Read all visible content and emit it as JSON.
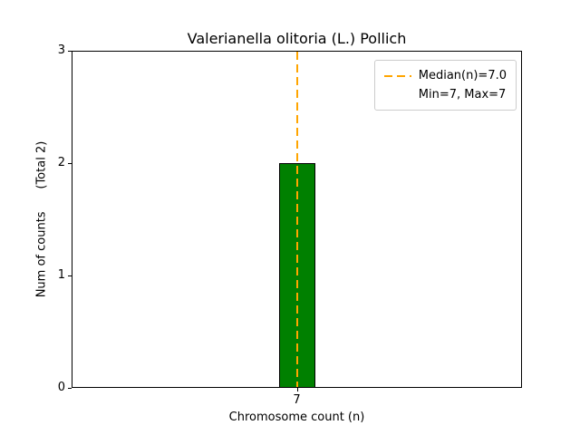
{
  "chart_data": {
    "type": "bar",
    "title": "Valerianella olitoria (L.) Pollich",
    "xlabel": "Chromosome count (n)",
    "ylabel": "Num of counts      (Total 2)",
    "total_annotation": "(Total 2)",
    "categories": [
      "7"
    ],
    "values": [
      2
    ],
    "ylim": [
      0,
      3
    ],
    "yticks": [
      0,
      1,
      2,
      3
    ],
    "grid": false,
    "median_line": {
      "x": 7,
      "label": "Median(n)=7.0",
      "style": "dashed"
    },
    "legend": {
      "position": "top-right",
      "entries": [
        {
          "label": "Median(n)=7.0",
          "marker": "dashed-line"
        },
        {
          "label": "Min=7, Max=7",
          "marker": "none"
        }
      ]
    },
    "colors": {
      "bar": "#008000",
      "bar_edge": "#000000",
      "median_line": "#ffa500",
      "legend_border": "#cccccc",
      "axes": "#000000"
    }
  }
}
